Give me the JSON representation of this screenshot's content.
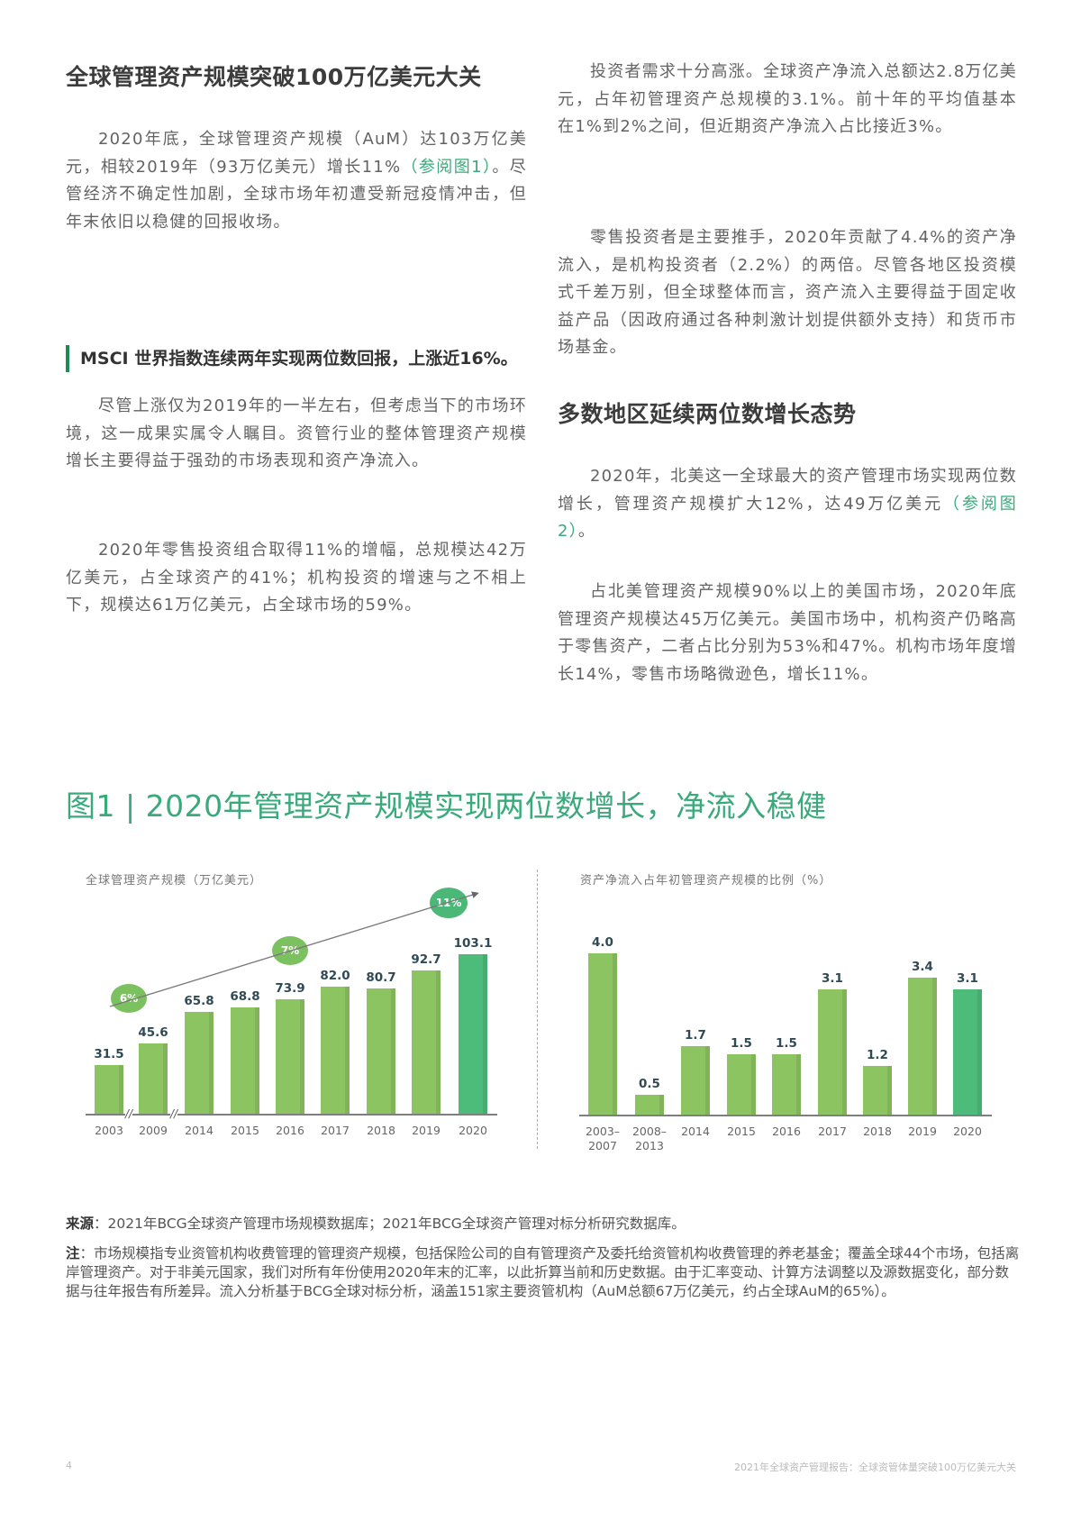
{
  "left_column": {
    "heading": "全球管理资产规模突破100万亿美元大关",
    "para1": {
      "before_ref": "2020年底，全球管理资产规模（AuM）达103万亿美元，相较2019年（93万亿美元）增长11%",
      "ref": "（参阅图1）",
      "after_ref": "。尽管经济不确定性加剧，全球市场年初遭受新冠疫情冲击，但年末依旧以稳健的回报收场。"
    },
    "callout": "MSCI 世界指数连续两年实现两位数回报，上涨近16%。",
    "para2": "尽管上涨仅为2019年的一半左右，但考虑当下的市场环境，这一成果实属令人瞩目。资管行业的整体管理资产规模增长主要得益于强劲的市场表现和资产净流入。",
    "para3": "2020年零售投资组合取得11%的增幅，总规模达42万亿美元，占全球资产的41%；机构投资的增速与之不相上下，规模达61万亿美元，占全球市场的59%。"
  },
  "right_column": {
    "para1": "投资者需求十分高涨。全球资产净流入总额达2.8万亿美元，占年初管理资产总规模的3.1%。前十年的平均值基本在1%到2%之间，但近期资产净流入占比接近3%。",
    "para2": "零售投资者是主要推手，2020年贡献了4.4%的资产净流入，是机构投资者（2.2%）的两倍。尽管各地区投资模式千差万别，但全球整体而言，资产流入主要得益于固定收益产品（因政府通过各种刺激计划提供额外支持）和货币市场基金。",
    "heading": "多数地区延续两位数增长态势",
    "para3": {
      "before_ref": "2020年，北美这一全球最大的资产管理市场实现两位数增长，管理资产规模扩大12%，达49万亿美元",
      "ref": "（参阅图2）",
      "after_ref": "。"
    },
    "para4": "占北美管理资产规模90%以上的美国市场，2020年底管理资产规模达45万亿美元。美国市场中，机构资产仍略高于零售资产，二者占比分别为53%和47%。机构市场年度增长14%，零售市场略微逊色，增长11%。"
  },
  "figure": {
    "title": "图1 | 2020年管理资产规模实现两位数增长，净流入稳健"
  },
  "chart_data": [
    {
      "type": "bar",
      "title": "全球管理资产规模（万亿美元）",
      "categories": [
        "2003",
        "2009",
        "2014",
        "2015",
        "2016",
        "2017",
        "2018",
        "2019",
        "2020"
      ],
      "values": [
        31.5,
        45.6,
        65.8,
        68.8,
        73.9,
        82.0,
        80.7,
        92.7,
        103.1
      ],
      "value_labels": [
        "31.5",
        "45.6",
        "65.8",
        "68.8",
        "73.9",
        "82.0",
        "80.7",
        "92.7",
        "103.1"
      ],
      "highlight_index": 8,
      "axis_breaks_after": [
        "2003",
        "2009"
      ],
      "annotations": [
        {
          "label": "6%",
          "segment": "2003–2009"
        },
        {
          "label": "7%",
          "segment": "2009–2019"
        },
        {
          "label": "11%",
          "segment": "2019–2020"
        }
      ],
      "xlabel": "",
      "ylabel": "",
      "grid": false,
      "colors": {
        "bar": "#8cc461",
        "highlight": "#4dbb7a",
        "bubble": "#7cc160",
        "bubble_dark": "#4bb877"
      }
    },
    {
      "type": "bar",
      "title": "资产净流入占年初管理资产规模的比例（%）",
      "categories": [
        "2003–2007",
        "2008–2013",
        "2014",
        "2015",
        "2016",
        "2017",
        "2018",
        "2019",
        "2020"
      ],
      "values": [
        4.0,
        0.5,
        1.7,
        1.5,
        1.5,
        3.1,
        1.2,
        3.4,
        3.1
      ],
      "value_labels": [
        "4.0",
        "0.5",
        "1.7",
        "1.5",
        "1.5",
        "3.1",
        "1.2",
        "3.4",
        "3.1"
      ],
      "highlight_index": 8,
      "xlabel": "",
      "ylabel": "",
      "grid": false,
      "colors": {
        "bar": "#8cc461",
        "highlight": "#4dbb7a"
      }
    }
  ],
  "chart_left_cats": [
    {
      "l1": "2003"
    },
    {
      "l1": "2009"
    },
    {
      "l1": "2014"
    },
    {
      "l1": "2015"
    },
    {
      "l1": "2016"
    },
    {
      "l1": "2017"
    },
    {
      "l1": "2018"
    },
    {
      "l1": "2019"
    },
    {
      "l1": "2020"
    }
  ],
  "chart_right_cats": [
    {
      "l1": "2003–",
      "l2": "2007"
    },
    {
      "l1": "2008–",
      "l2": "2013"
    },
    {
      "l1": "2014"
    },
    {
      "l1": "2015"
    },
    {
      "l1": "2016"
    },
    {
      "l1": "2017"
    },
    {
      "l1": "2018"
    },
    {
      "l1": "2019"
    },
    {
      "l1": "2020"
    }
  ],
  "notes": {
    "source_label": "来源",
    "source_text": "：2021年BCG全球资产管理市场规模数据库；2021年BCG全球资产管理对标分析研究数据库。",
    "note_label": "注",
    "note_text": "：市场规模指专业资管机构收费管理的管理资产规模，包括保险公司的自有管理资产及委托给资管机构收费管理的养老基金；覆盖全球44个市场，包括离岸管理资产。对于非美元国家，我们对所有年份使用2020年末的汇率，以此折算当前和历史数据。由于汇率变动、计算方法调整以及源数据变化，部分数据与往年报告有所差异。流入分析基于BCG全球对标分析，涵盖151家主要资管机构（AuM总额67万亿美元，约占全球AuM的65%）。"
  },
  "footer": {
    "page_number": "4",
    "running_title": "2021年全球资产管理报告：全球资管体量突破100万亿美元大关"
  }
}
